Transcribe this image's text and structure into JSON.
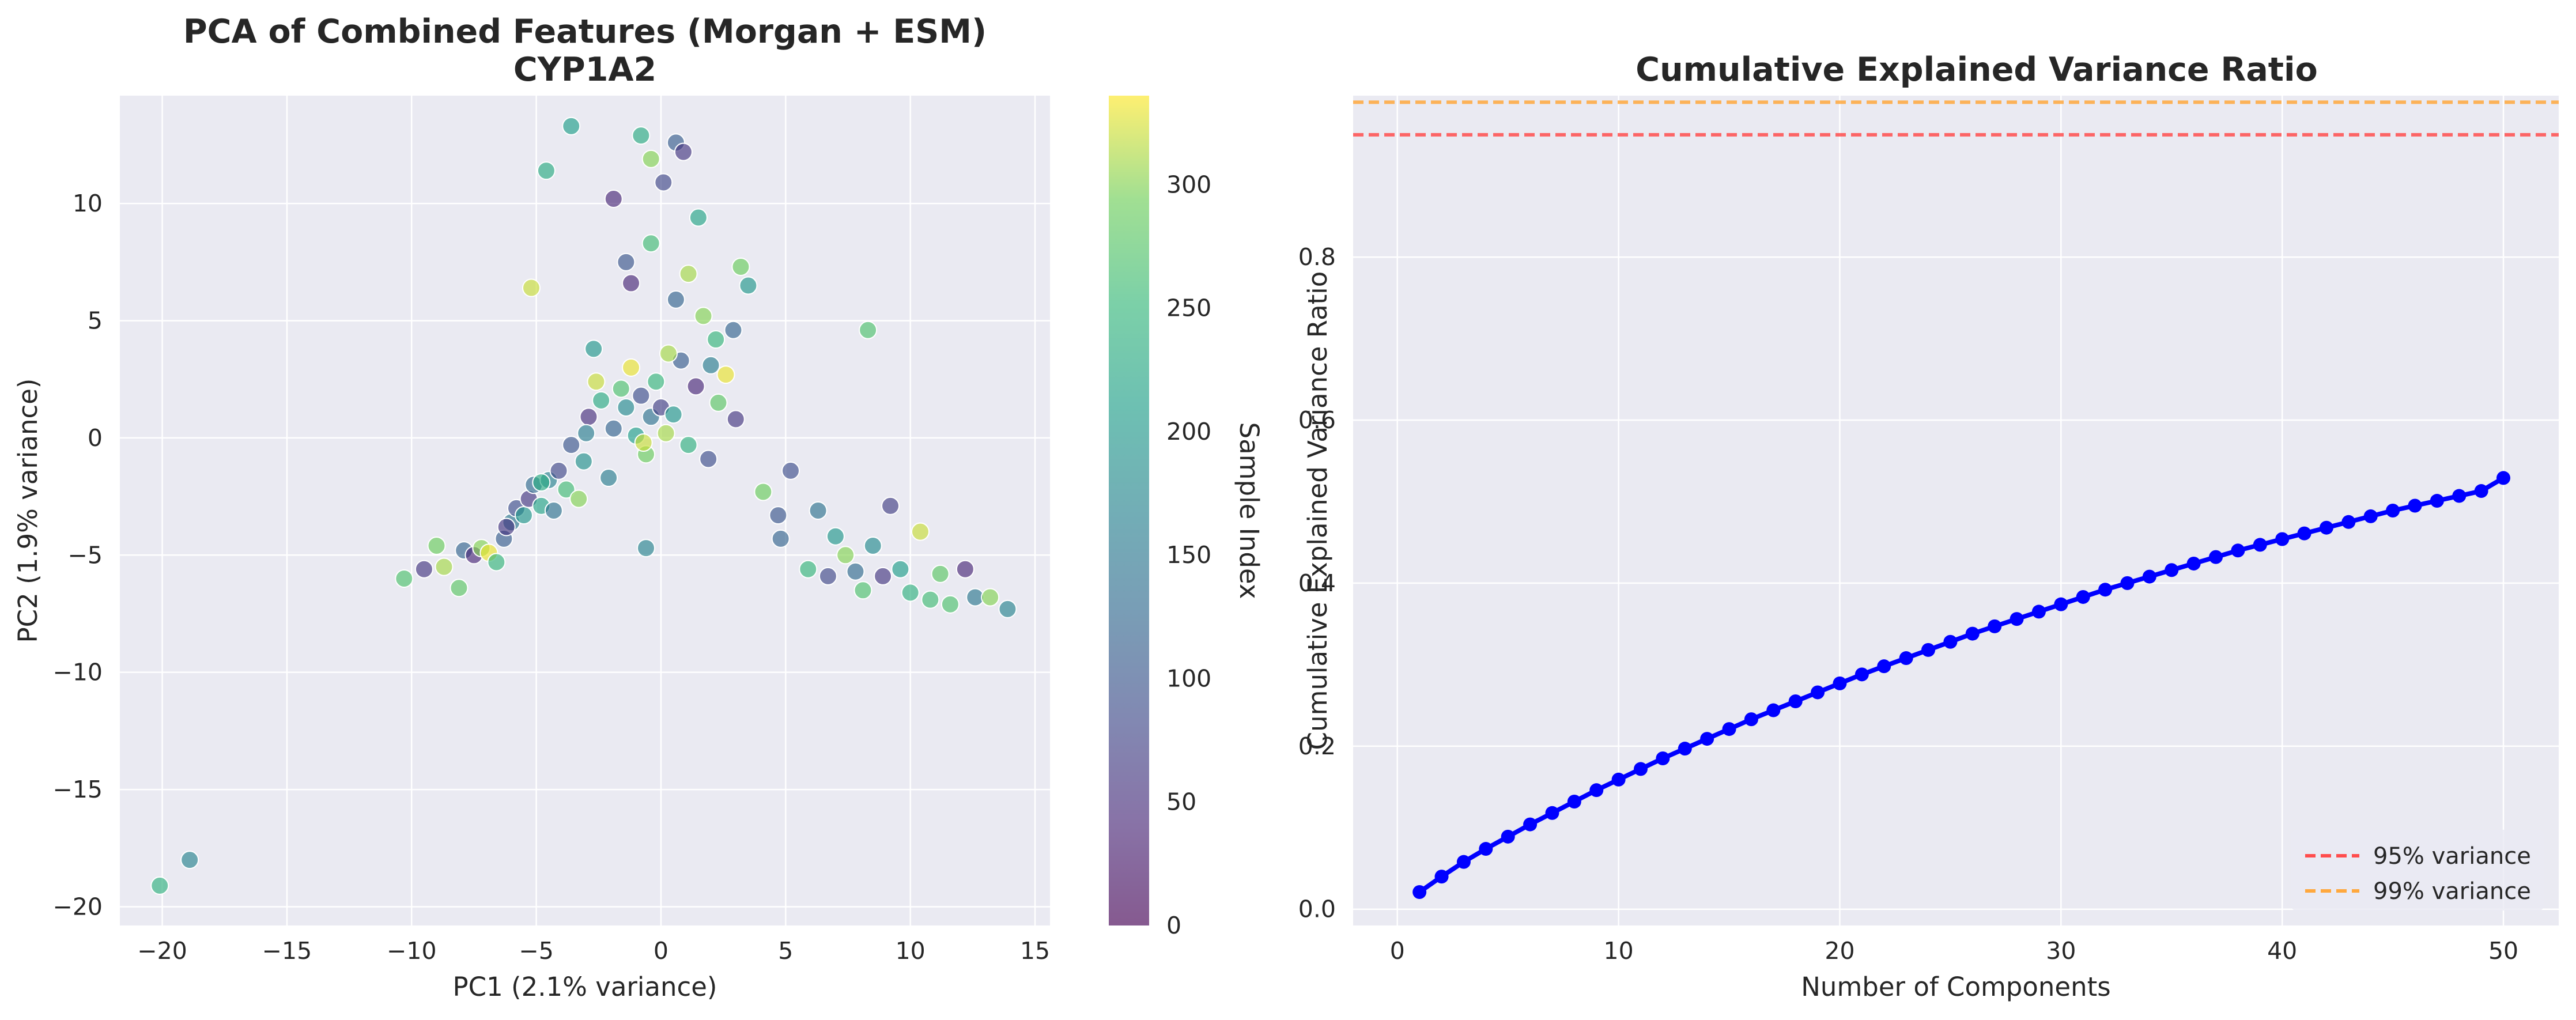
{
  "chart_data": [
    {
      "type": "scatter",
      "title": "PCA of Combined Features (Morgan + ESM)",
      "subtitle": "CYP1A2",
      "xlabel": "PC1 (2.1% variance)",
      "ylabel": "PC2 (1.9% variance)",
      "xlim": [
        -21.7,
        15.6
      ],
      "ylim": [
        -20.8,
        14.6
      ],
      "xticks": [
        -20,
        -15,
        -10,
        -5,
        0,
        5,
        10,
        15
      ],
      "yticks": [
        -20,
        -15,
        -10,
        -5,
        0,
        5,
        10
      ],
      "grid": true,
      "colormap": "viridis",
      "colorbar": {
        "label": "Sample Index",
        "min": 0,
        "max": 336,
        "ticks": [
          0,
          50,
          100,
          150,
          200,
          250,
          300
        ]
      },
      "points": [
        [
          -20.1,
          -19.1,
          240
        ],
        [
          -18.9,
          -18.0,
          170
        ],
        [
          -10.3,
          -6.0,
          270
        ],
        [
          -9.5,
          -5.6,
          60
        ],
        [
          -9.0,
          -4.6,
          290
        ],
        [
          -8.7,
          -5.5,
          310
        ],
        [
          -8.1,
          -6.4,
          280
        ],
        [
          -7.9,
          -4.8,
          120
        ],
        [
          -7.5,
          -5.0,
          40
        ],
        [
          -7.2,
          -4.7,
          300
        ],
        [
          -6.9,
          -4.9,
          330
        ],
        [
          -6.6,
          -5.3,
          250
        ],
        [
          -6.3,
          -4.3,
          110
        ],
        [
          -6.0,
          -3.6,
          150
        ],
        [
          -5.8,
          -3.0,
          90
        ],
        [
          -5.5,
          -3.3,
          200
        ],
        [
          -5.3,
          -2.6,
          60
        ],
        [
          -5.1,
          -2.0,
          130
        ],
        [
          -4.8,
          -2.9,
          220
        ],
        [
          -4.5,
          -1.8,
          170
        ],
        [
          -4.3,
          -3.1,
          140
        ],
        [
          -4.1,
          -1.4,
          80
        ],
        [
          -3.8,
          -2.2,
          260
        ],
        [
          -3.6,
          -0.3,
          100
        ],
        [
          -3.3,
          -2.6,
          300
        ],
        [
          -3.1,
          -1.0,
          190
        ],
        [
          -2.9,
          0.9,
          50
        ],
        [
          -2.6,
          2.4,
          320
        ],
        [
          -2.4,
          1.6,
          230
        ],
        [
          -2.1,
          -1.7,
          160
        ],
        [
          -1.9,
          0.4,
          120
        ],
        [
          -1.6,
          2.1,
          270
        ],
        [
          -1.4,
          1.3,
          180
        ],
        [
          -1.2,
          3.0,
          330
        ],
        [
          -1.0,
          0.1,
          210
        ],
        [
          -0.8,
          1.8,
          90
        ],
        [
          -0.6,
          -0.7,
          290
        ],
        [
          -0.4,
          0.9,
          140
        ],
        [
          -0.2,
          2.4,
          250
        ],
        [
          0.0,
          1.3,
          70
        ],
        [
          0.2,
          0.2,
          310
        ],
        [
          0.5,
          1.0,
          200
        ],
        [
          0.8,
          3.3,
          110
        ],
        [
          1.1,
          -0.3,
          240
        ],
        [
          1.4,
          2.2,
          40
        ],
        [
          1.7,
          5.2,
          300
        ],
        [
          2.0,
          3.1,
          160
        ],
        [
          2.3,
          1.5,
          280
        ],
        [
          2.6,
          2.7,
          330
        ],
        [
          2.9,
          4.6,
          120
        ],
        [
          3.2,
          7.3,
          290
        ],
        [
          3.5,
          6.5,
          200
        ],
        [
          -1.9,
          10.2,
          40
        ],
        [
          -1.4,
          7.5,
          100
        ],
        [
          -0.8,
          12.9,
          230
        ],
        [
          -0.4,
          11.9,
          300
        ],
        [
          0.1,
          10.9,
          80
        ],
        [
          0.6,
          12.6,
          110
        ],
        [
          0.9,
          12.2,
          60
        ],
        [
          1.5,
          9.4,
          220
        ],
        [
          1.1,
          7.0,
          310
        ],
        [
          0.6,
          5.9,
          120
        ],
        [
          -0.4,
          8.3,
          260
        ],
        [
          -4.6,
          11.4,
          230
        ],
        [
          -3.6,
          13.3,
          210
        ],
        [
          -5.2,
          6.4,
          320
        ],
        [
          -1.2,
          6.6,
          40
        ],
        [
          8.3,
          4.6,
          270
        ],
        [
          4.1,
          -2.3,
          290
        ],
        [
          4.7,
          -3.3,
          100
        ],
        [
          5.2,
          -1.4,
          90
        ],
        [
          4.8,
          -4.3,
          120
        ],
        [
          5.9,
          -5.6,
          250
        ],
        [
          6.3,
          -3.1,
          140
        ],
        [
          6.7,
          -5.9,
          80
        ],
        [
          7.0,
          -4.2,
          200
        ],
        [
          7.4,
          -5.0,
          300
        ],
        [
          7.8,
          -5.7,
          130
        ],
        [
          8.1,
          -6.5,
          270
        ],
        [
          8.5,
          -4.6,
          180
        ],
        [
          8.9,
          -5.9,
          60
        ],
        [
          9.2,
          -2.9,
          70
        ],
        [
          9.6,
          -5.6,
          210
        ],
        [
          10.0,
          -6.6,
          240
        ],
        [
          10.4,
          -4.0,
          320
        ],
        [
          10.8,
          -6.9,
          260
        ],
        [
          11.2,
          -5.8,
          280
        ],
        [
          11.6,
          -7.1,
          270
        ],
        [
          12.2,
          -5.6,
          40
        ],
        [
          12.6,
          -6.8,
          150
        ],
        [
          13.2,
          -6.8,
          300
        ],
        [
          13.9,
          -7.3,
          170
        ],
        [
          -0.6,
          -4.7,
          170
        ],
        [
          -3.0,
          0.2,
          160
        ],
        [
          -6.2,
          -3.8,
          60
        ],
        [
          1.9,
          -0.9,
          90
        ],
        [
          0.3,
          3.6,
          310
        ],
        [
          -2.7,
          3.8,
          200
        ],
        [
          2.2,
          4.2,
          250
        ],
        [
          -0.7,
          -0.2,
          320
        ],
        [
          3.0,
          0.8,
          60
        ],
        [
          -4.8,
          -1.9,
          230
        ]
      ]
    },
    {
      "type": "line",
      "title": "Cumulative Explained Variance Ratio",
      "xlabel": "Number of Components",
      "ylabel": "Cumulative Explained Variance Ratio",
      "xlim": [
        -2,
        52.5
      ],
      "ylim": [
        -0.02,
        0.998
      ],
      "xticks": [
        0,
        10,
        20,
        30,
        40,
        50
      ],
      "yticks": [
        0.0,
        0.2,
        0.4,
        0.6,
        0.8
      ],
      "grid": true,
      "x": [
        1,
        2,
        3,
        4,
        5,
        6,
        7,
        8,
        9,
        10,
        11,
        12,
        13,
        14,
        15,
        16,
        17,
        18,
        19,
        20,
        21,
        22,
        23,
        24,
        25,
        26,
        27,
        28,
        29,
        30,
        31,
        32,
        33,
        34,
        35,
        36,
        37,
        38,
        39,
        40,
        41,
        42,
        43,
        44,
        45,
        46,
        47,
        48,
        49,
        50
      ],
      "series": [
        {
          "name": "",
          "color": "#0000ff",
          "values": [
            0.021,
            0.04,
            0.058,
            0.074,
            0.089,
            0.104,
            0.118,
            0.132,
            0.146,
            0.159,
            0.172,
            0.185,
            0.197,
            0.209,
            0.221,
            0.233,
            0.244,
            0.255,
            0.266,
            0.277,
            0.288,
            0.298,
            0.308,
            0.318,
            0.328,
            0.338,
            0.347,
            0.356,
            0.365,
            0.374,
            0.383,
            0.392,
            0.4,
            0.408,
            0.416,
            0.424,
            0.432,
            0.44,
            0.447,
            0.454,
            0.461,
            0.468,
            0.475,
            0.482,
            0.489,
            0.495,
            0.501,
            0.507,
            0.513,
            0.529
          ]
        }
      ],
      "hlines": [
        {
          "name": "95% variance",
          "y": 0.95,
          "color": "#ff4d4d"
        },
        {
          "name": "99% variance",
          "y": 0.99,
          "color": "#ffa83d"
        }
      ],
      "legend_position": "lower-right"
    }
  ]
}
